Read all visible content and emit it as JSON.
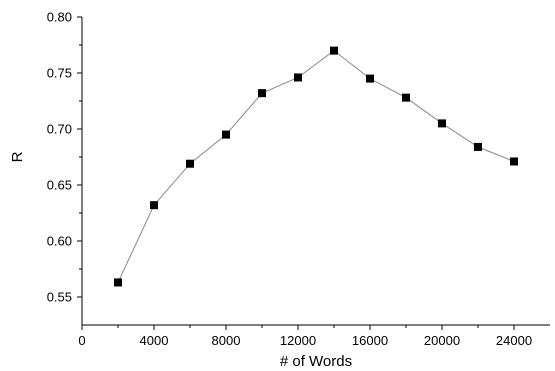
{
  "chart_data": {
    "type": "line",
    "xlabel": "# of Words",
    "ylabel": "R",
    "xlim": [
      0,
      26000
    ],
    "ylim": [
      0.525,
      0.8
    ],
    "x_ticks": [
      0,
      4000,
      8000,
      12000,
      16000,
      20000,
      24000
    ],
    "x_tick_labels": [
      "0",
      "4000",
      "8000",
      "12000",
      "16000",
      "20000",
      "24000"
    ],
    "y_ticks": [
      0.55,
      0.6,
      0.65,
      0.7,
      0.75,
      0.8
    ],
    "y_tick_labels": [
      "0.55",
      "0.60",
      "0.65",
      "0.70",
      "0.75",
      "0.80"
    ],
    "grid": false,
    "marker": "square",
    "series": [
      {
        "x": [
          2000,
          4000,
          6000,
          8000,
          10000,
          12000,
          14000,
          16000,
          18000,
          20000,
          22000,
          24000
        ],
        "y": [
          0.563,
          0.632,
          0.669,
          0.695,
          0.732,
          0.746,
          0.77,
          0.745,
          0.728,
          0.705,
          0.684,
          0.671
        ]
      }
    ],
    "colors": {
      "line": "#888888",
      "marker": "#000000",
      "axis": "#000000"
    }
  }
}
